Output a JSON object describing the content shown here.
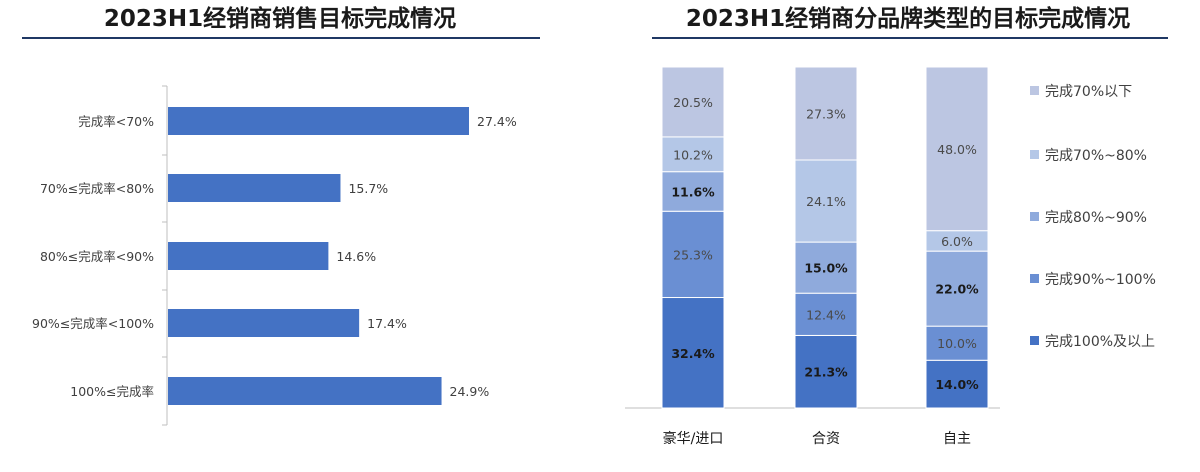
{
  "chart_data": [
    {
      "type": "bar",
      "orientation": "horizontal",
      "title": "2023H1经销商销售目标完成情况",
      "categories": [
        "完成率<70%",
        "70%≤完成率<80%",
        "80%≤完成率<90%",
        "90%≤完成率<100%",
        "100%≤完成率"
      ],
      "values": [
        27.4,
        15.7,
        14.6,
        17.4,
        24.9
      ],
      "value_labels": [
        "27.4%",
        "15.7%",
        "14.6%",
        "17.4%",
        "24.9%"
      ],
      "xlim": [
        0,
        30
      ],
      "grid": false,
      "colors": {
        "bar": "#4472c4",
        "axis": "#bfbfbf"
      }
    },
    {
      "type": "bar",
      "stacked": true,
      "title": "2023H1经销商分品牌类型的目标完成情况",
      "categories": [
        "豪华/进口",
        "合资",
        "自主"
      ],
      "series": [
        {
          "name": "完成100%及以上",
          "values": [
            32.4,
            21.3,
            14.0
          ],
          "labels": [
            "32.4%",
            "21.3%",
            "14.0%"
          ],
          "bold": true,
          "color": "#4472c4"
        },
        {
          "name": "完成90%~100%",
          "values": [
            25.3,
            12.4,
            10.0
          ],
          "labels": [
            "25.3%",
            "12.4%",
            "10.0%"
          ],
          "bold": false,
          "color": "#6a8fd3"
        },
        {
          "name": "完成80%~90%",
          "values": [
            11.6,
            15.0,
            22.0
          ],
          "labels": [
            "11.6%",
            "15.0%",
            "22.0%"
          ],
          "bold": true,
          "color": "#8faadc"
        },
        {
          "name": "完成70%~80%",
          "values": [
            10.2,
            24.1,
            6.0
          ],
          "labels": [
            "10.2%",
            "24.1%",
            "6.0%"
          ],
          "bold": false,
          "color": "#b4c7e7"
        },
        {
          "name": "完成70%以下",
          "values": [
            20.5,
            27.3,
            48.0
          ],
          "labels": [
            "20.5%",
            "27.3%",
            "48.0%"
          ],
          "bold": false,
          "color": "#bcc6e2"
        }
      ],
      "ylim": [
        0,
        100
      ],
      "legend_position": "right",
      "grid": false
    }
  ]
}
